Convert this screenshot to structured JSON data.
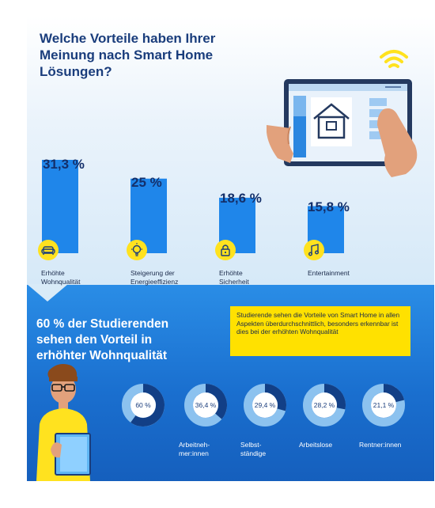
{
  "title": "Welche Vorteile haben Ihrer Meinung nach Smart Home Lösungen?",
  "chart_data": [
    {
      "type": "bar",
      "categories": [
        "Erhöhte Wohnqualität",
        "Steigerung der Energieeffizienz",
        "Erhöhte Sicherheit",
        "Entertainment"
      ],
      "values": [
        31.3,
        25,
        18.6,
        15.8
      ],
      "value_labels": [
        "31,3 %",
        "25 %",
        "18,6 %",
        "15,8 %"
      ],
      "icons": [
        "sofa-icon",
        "lightbulb-icon",
        "lock-icon",
        "music-note-icon"
      ],
      "ylim": [
        0,
        31.3
      ]
    },
    {
      "type": "pie",
      "categories": [
        "",
        "Arbeitnehmer:innen",
        "Selbstständige",
        "Arbeitslose",
        "Rentner:innen"
      ],
      "values": [
        60,
        36.4,
        29.4,
        28.2,
        21.1
      ],
      "value_labels": [
        "60 %",
        "36,4 %",
        "29,4 %",
        "28,2 %",
        "21,1 %"
      ]
    }
  ],
  "category_labels": [
    [
      "Erhöhte",
      "Wohnqualität"
    ],
    [
      "Steigerung der",
      "Energieeffizienz"
    ],
    [
      "Erhöhte",
      "Sicherheit"
    ],
    [
      "Entertainment",
      ""
    ]
  ],
  "donut_labels": [
    [
      "",
      "",
      ""
    ],
    [
      "Arbeitneh-",
      "mer:innen",
      ""
    ],
    [
      "Selbst-",
      "ständige",
      ""
    ],
    [
      "Arbeitslose",
      "",
      ""
    ],
    [
      "Rentner:innen",
      "",
      ""
    ]
  ],
  "headline": [
    "60 % der Studierenden",
    "sehen den Vorteil in",
    "erhöhter Wohnqualität"
  ],
  "note": "Studierende sehen die Vorteile von Smart Home in allen Aspekten überdurchschnittlich, besonders erkennbar ist dies bei der erhöhten Wohnqualität",
  "colors": {
    "bar": "#1f86ea",
    "accent_yellow": "#ffe100",
    "title_blue": "#1a3d7c",
    "donut_fill": "#123f86",
    "donut_rest": "#8cc2ef"
  }
}
